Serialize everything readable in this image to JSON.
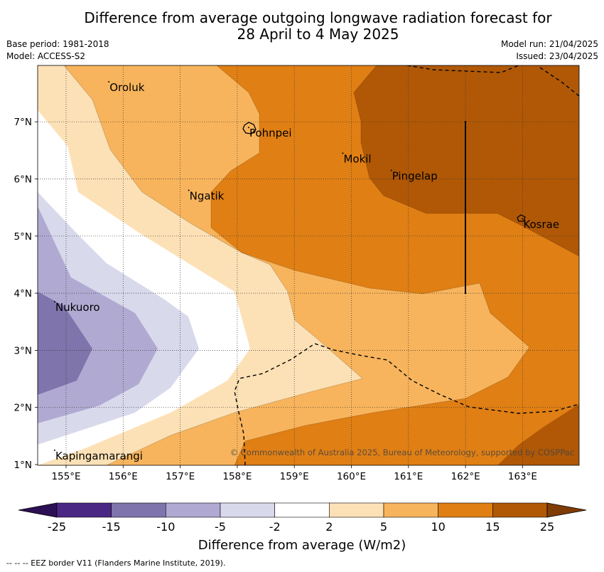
{
  "header": {
    "title_line1": "Difference from average outgoing longwave radiation forecast for",
    "title_line2": "28 April to 4 May 2025",
    "base_period": "Base period: 1981-2018",
    "model": "Model: ACCESS-S2",
    "model_run": "Model run: 21/04/2025",
    "issued": "Issued: 23/04/2025"
  },
  "map": {
    "lat_labels": [
      "7°N",
      "6°N",
      "5°N",
      "4°N",
      "3°N",
      "2°N",
      "1°N"
    ],
    "lon_labels": [
      "155°E",
      "156°E",
      "157°E",
      "158°E",
      "159°E",
      "160°E",
      "161°E",
      "162°E",
      "163°E"
    ],
    "places": [
      {
        "name": "Oroluk",
        "lon": 155.75,
        "lat": 7.7
      },
      {
        "name": "Pohnpei",
        "lon": 158.2,
        "lat": 6.9
      },
      {
        "name": "Mokil",
        "lon": 159.85,
        "lat": 6.45
      },
      {
        "name": "Pingelap",
        "lon": 160.7,
        "lat": 6.15
      },
      {
        "name": "Ngatik",
        "lon": 157.15,
        "lat": 5.8
      },
      {
        "name": "Kosrae",
        "lon": 163.0,
        "lat": 5.3
      },
      {
        "name": "Nukuoro",
        "lon": 154.8,
        "lat": 3.85
      },
      {
        "name": "Kapingamarangi",
        "lon": 154.8,
        "lat": 1.25
      }
    ],
    "copyright": "© Commonwealth of Australia 2025, Bureau of Meteorology, supported by COSPPac"
  },
  "legend": {
    "ticks": [
      "-25",
      "-15",
      "-10",
      "-5",
      "-2",
      "2",
      "5",
      "10",
      "15",
      "25"
    ],
    "colors": [
      "#4b2784",
      "#7f74ab",
      "#b0aad2",
      "#d9d9ec",
      "#ffffff",
      "#fde1b6",
      "#f8b45c",
      "#e07f14",
      "#b05806"
    ],
    "label": "Difference from average (W/m2)"
  },
  "footer": {
    "eez_note": "--  --  -- EEZ border V11 (Flanders Marine Institute, 2019)."
  }
}
